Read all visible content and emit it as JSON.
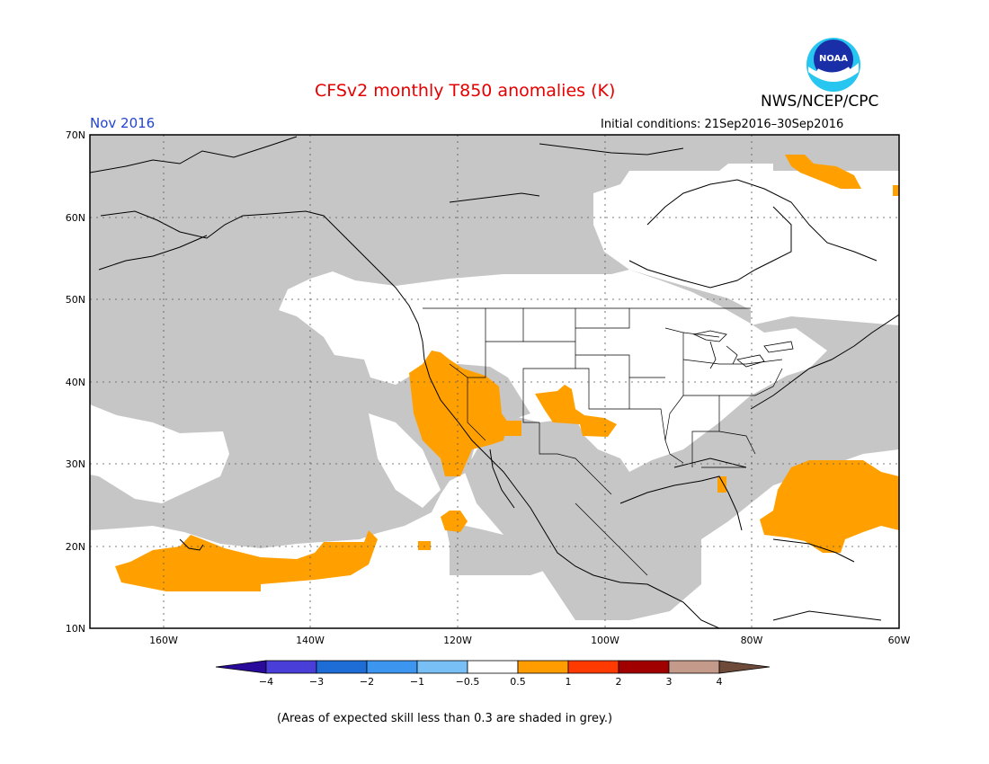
{
  "header": {
    "title": "CFSv2 monthly T850 anomalies (K)",
    "agency": "NWS/NCEP/CPC",
    "logo_text": "NOAA",
    "month": "Nov 2016",
    "initial_conditions": "Initial conditions: 21Sep2016–30Sep2016"
  },
  "map": {
    "lat_labels": [
      "70N",
      "60N",
      "50N",
      "40N",
      "30N",
      "20N",
      "10N"
    ],
    "lon_labels": [
      "160W",
      "140W",
      "120W",
      "100W",
      "80W",
      "60W"
    ],
    "lat_range": [
      10,
      70
    ],
    "lon_range": [
      -171,
      -60
    ],
    "regions": [
      {
        "name": "positive-anomaly-california",
        "category": "0.5 to 1"
      },
      {
        "name": "positive-anomaly-southwest",
        "category": "0.5 to 1"
      },
      {
        "name": "positive-anomaly-caribbean",
        "category": "0.5 to 1"
      },
      {
        "name": "positive-anomaly-hawaii-pacific",
        "category": "0.5 to 1"
      },
      {
        "name": "positive-anomaly-labrador",
        "category": "0.5 to 1"
      }
    ]
  },
  "colorbar": {
    "labels": [
      "−4",
      "−3",
      "−2",
      "−1",
      "−0.5",
      "0.5",
      "1",
      "2",
      "3",
      "4"
    ],
    "colors": [
      "#2a0a9a",
      "#4a3ed8",
      "#1e6cd6",
      "#3c96f0",
      "#78bff5",
      "#ffffff",
      "#ff9d00",
      "#ff3a00",
      "#a00000",
      "#c49a8a",
      "#6e4a3a"
    ]
  },
  "footer": {
    "note": "(Areas of expected skill less than 0.3 are shaded in grey.)"
  },
  "colors": {
    "grey_low_skill": "#c6c6c6",
    "anomaly_positive": "#ffa000",
    "title_red": "#e60000",
    "month_blue": "#2244cc"
  }
}
